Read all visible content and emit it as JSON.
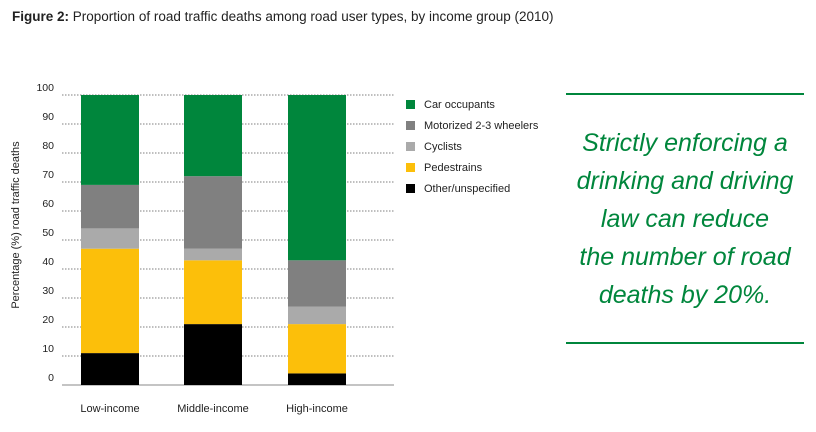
{
  "figure": {
    "label": "Figure 2:",
    "caption": "Proportion of road traffic deaths among road user types, by income group (2010)"
  },
  "chart_data": {
    "type": "bar",
    "stacked": true,
    "categories": [
      "Low-income",
      "Middle-income",
      "High-income"
    ],
    "series": [
      {
        "name": "Other/unspecified",
        "color": "#000000",
        "values": [
          11,
          21,
          4
        ]
      },
      {
        "name": "Pedestrains",
        "color": "#fcbf0a",
        "values": [
          36,
          22,
          17
        ]
      },
      {
        "name": "Cyclists",
        "color": "#aaaaaa",
        "values": [
          7,
          4,
          6
        ]
      },
      {
        "name": "Motorized 2-3 wheelers",
        "color": "#808080",
        "values": [
          15,
          25,
          16
        ]
      },
      {
        "name": "Car occupants",
        "color": "#00863c",
        "values": [
          31,
          28,
          57
        ]
      }
    ],
    "legend_order": [
      "Car occupants",
      "Motorized 2-3 wheelers",
      "Cyclists",
      "Pedestrains",
      "Other/unspecified"
    ],
    "ylabel": "Percentage (%) road traffic deaths",
    "ylim": [
      0,
      100
    ],
    "yticks": [
      0,
      10,
      20,
      30,
      40,
      50,
      60,
      70,
      80,
      90,
      100
    ],
    "grid": true,
    "legend_position": "right"
  },
  "callout": {
    "lines": [
      "Strictly enforcing a",
      "drinking and driving",
      "law can reduce",
      "the number of road",
      "deaths by 20%."
    ]
  }
}
